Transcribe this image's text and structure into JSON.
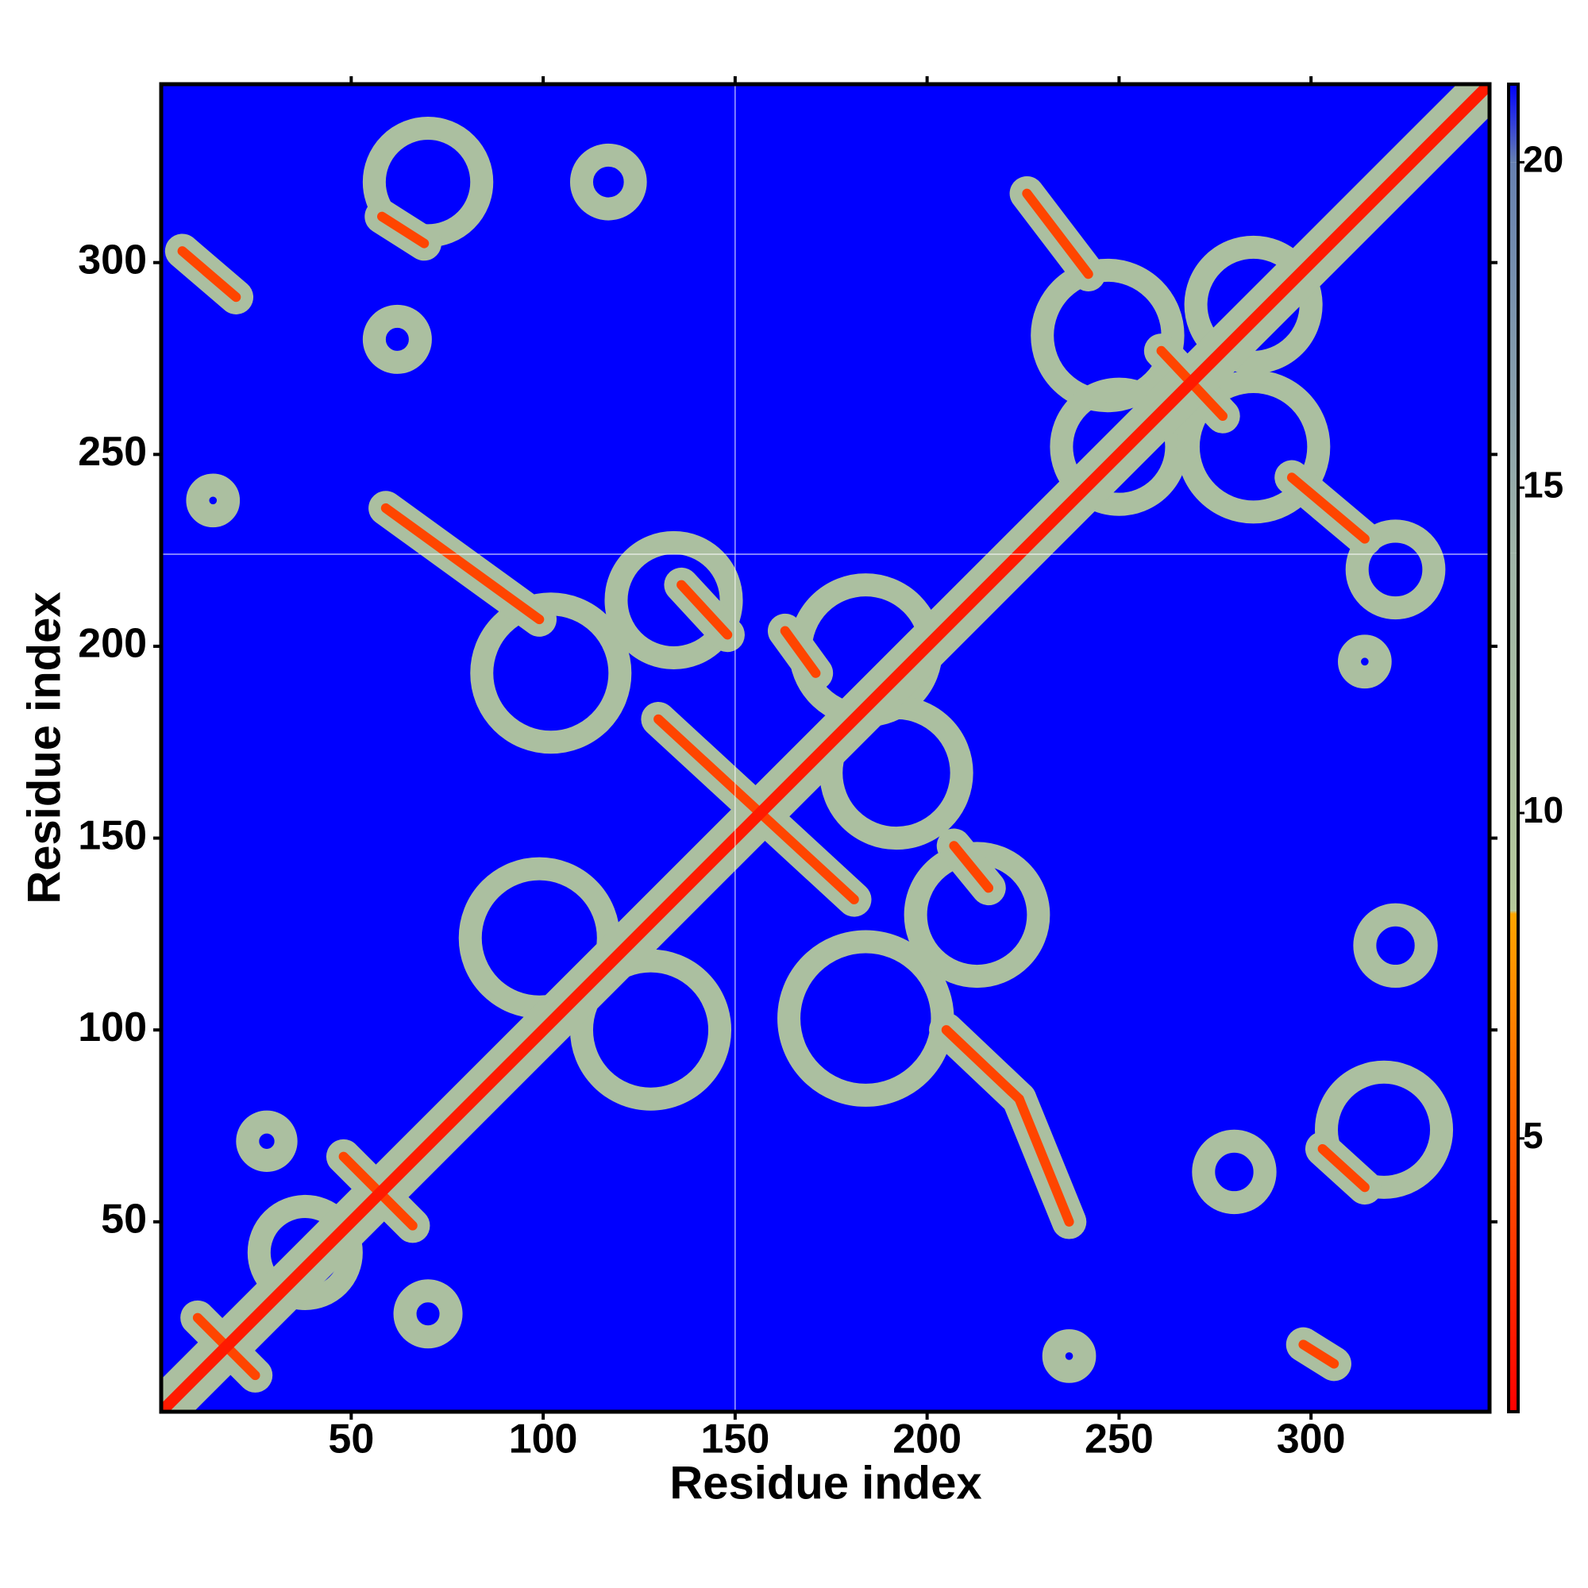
{
  "chart_data": {
    "type": "contact-map",
    "xlabel": "Residue index",
    "ylabel": "Residue index",
    "xlim": [
      0.5,
      346.5
    ],
    "ylim": [
      0.5,
      346.5
    ],
    "xticks": [
      50,
      100,
      150,
      200,
      250,
      300
    ],
    "yticks": [
      50,
      100,
      150,
      200,
      250,
      300
    ],
    "clim": [
      0.8,
      21.2
    ],
    "cticks": [
      5,
      10,
      15,
      20
    ],
    "color_stops": [
      {
        "value": 0.8,
        "color": "#ff0000"
      },
      {
        "value": 8.45,
        "color": "#ffa500"
      },
      {
        "value": 8.5,
        "color": "#b5c99a"
      },
      {
        "value": 14,
        "color": "#9fb4a8"
      },
      {
        "value": 20,
        "color": "#6680b0"
      },
      {
        "value": 21.2,
        "color": "#0000ff"
      }
    ],
    "background": 21.2,
    "crosshair": {
      "x": 150,
      "y": 224
    },
    "diagonal": {
      "x": [
        1,
        346
      ],
      "y": [
        1,
        346
      ],
      "value": 2,
      "width": 3,
      "halo_value": 11,
      "halo_width": 12
    },
    "contact_value": 4,
    "contact_width": 2.5,
    "halo_value": 11,
    "halo_width": 9,
    "contacts": [
      {
        "x": [
          130,
          181
        ],
        "y": [
          181,
          134
        ]
      },
      {
        "x": [
          48,
          66
        ],
        "y": [
          67,
          49
        ]
      },
      {
        "x": [
          10,
          25
        ],
        "y": [
          25,
          10
        ]
      },
      {
        "x": [
          58,
          69
        ],
        "y": [
          312,
          305
        ]
      },
      {
        "x": [
          6,
          20
        ],
        "y": [
          303,
          291
        ]
      },
      {
        "x": [
          59,
          99
        ],
        "y": [
          236,
          207
        ]
      },
      {
        "x": [
          136,
          148
        ],
        "y": [
          216,
          203
        ]
      },
      {
        "x": [
          205,
          224
        ],
        "y": [
          100,
          82
        ]
      },
      {
        "x": [
          224,
          237
        ],
        "y": [
          82,
          50
        ]
      },
      {
        "x": [
          207,
          216
        ],
        "y": [
          148,
          137
        ]
      },
      {
        "x": [
          163,
          171
        ],
        "y": [
          204,
          193
        ]
      },
      {
        "x": [
          226,
          242
        ],
        "y": [
          318,
          297
        ]
      },
      {
        "x": [
          295,
          314
        ],
        "y": [
          244,
          228
        ]
      },
      {
        "x": [
          261,
          277
        ],
        "y": [
          277,
          260
        ]
      },
      {
        "x": [
          303,
          314
        ],
        "y": [
          69,
          59
        ]
      },
      {
        "x": [
          298,
          306
        ],
        "y": [
          18,
          13
        ]
      }
    ],
    "ring_value": 11,
    "ring_width": 6,
    "rings": [
      {
        "x": 99,
        "y": 124,
        "r": 18
      },
      {
        "x": 128,
        "y": 100,
        "r": 18
      },
      {
        "x": 102,
        "y": 193,
        "r": 18
      },
      {
        "x": 134,
        "y": 212,
        "r": 15
      },
      {
        "x": 184,
        "y": 199,
        "r": 17
      },
      {
        "x": 192,
        "y": 167,
        "r": 17
      },
      {
        "x": 184,
        "y": 103,
        "r": 20
      },
      {
        "x": 213,
        "y": 130,
        "r": 16
      },
      {
        "x": 70,
        "y": 321,
        "r": 14
      },
      {
        "x": 247,
        "y": 281,
        "r": 17
      },
      {
        "x": 285,
        "y": 289,
        "r": 15
      },
      {
        "x": 250,
        "y": 252,
        "r": 15
      },
      {
        "x": 285,
        "y": 252,
        "r": 17
      },
      {
        "x": 117,
        "y": 321,
        "r": 7
      },
      {
        "x": 322,
        "y": 220,
        "r": 10
      },
      {
        "x": 322,
        "y": 122,
        "r": 8
      },
      {
        "x": 319,
        "y": 74,
        "r": 15
      },
      {
        "x": 70,
        "y": 26,
        "r": 6
      },
      {
        "x": 28,
        "y": 71,
        "r": 5
      },
      {
        "x": 14,
        "y": 238,
        "r": 4
      },
      {
        "x": 62,
        "y": 280,
        "r": 6
      },
      {
        "x": 280,
        "y": 63,
        "r": 8
      },
      {
        "x": 237,
        "y": 15,
        "r": 4
      },
      {
        "x": 314,
        "y": 196,
        "r": 4
      },
      {
        "x": 38,
        "y": 42,
        "r": 12
      }
    ]
  }
}
